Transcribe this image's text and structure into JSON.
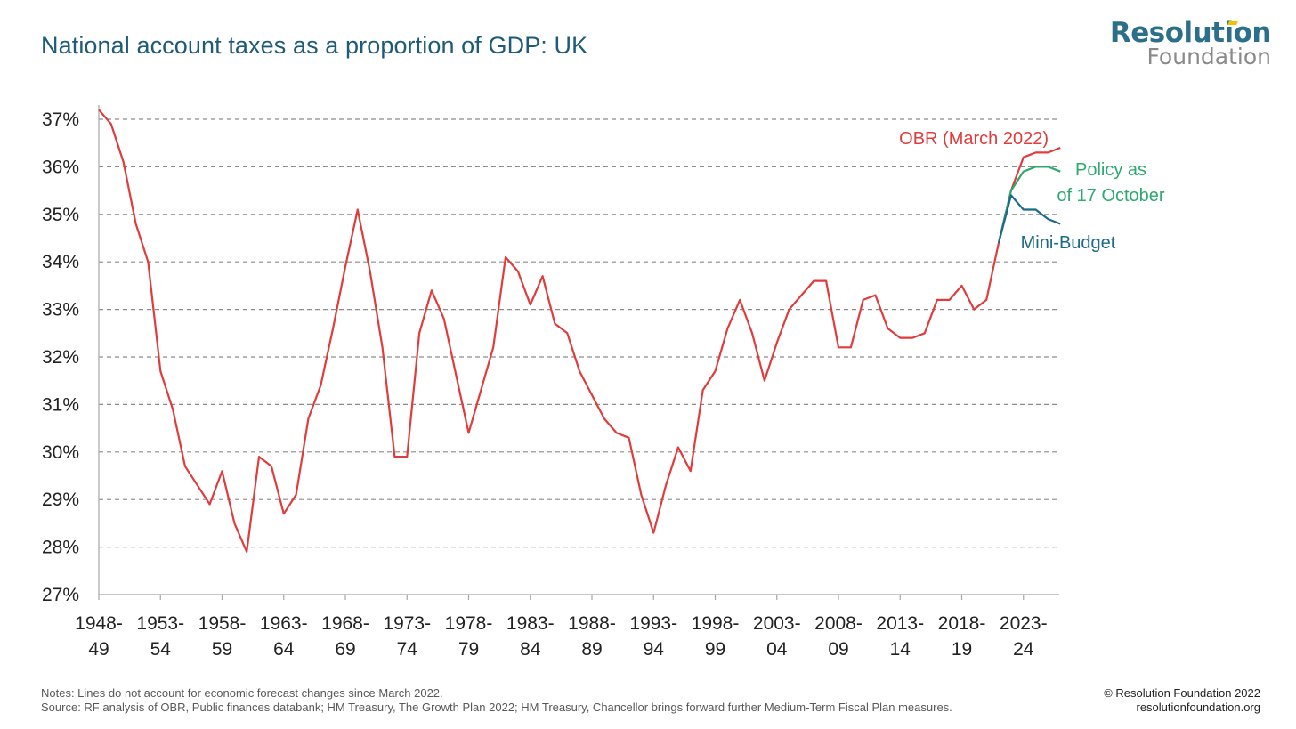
{
  "title": "National account taxes as a proportion of GDP: UK",
  "logo": {
    "line1": "Resolution",
    "line2": "Foundation"
  },
  "notes": "Notes: Lines do not account for economic forecast changes since March 2022.",
  "source": "Source: RF analysis of OBR, Public finances databank; HM Treasury, The Growth Plan 2022; HM Treasury, Chancellor brings forward further Medium-Term Fiscal Plan measures.",
  "copyright": "© Resolution Foundation 2022",
  "website": "resolutionfoundation.org",
  "chart_data": {
    "type": "line",
    "title": "National account taxes as a proportion of GDP: UK",
    "ylim": [
      27,
      37
    ],
    "yticks": [
      "27%",
      "28%",
      "29%",
      "30%",
      "31%",
      "32%",
      "33%",
      "34%",
      "35%",
      "36%",
      "37%"
    ],
    "grid": "horizontal dashed",
    "xtick_labels": [
      [
        "1948-",
        "49"
      ],
      [
        "1953-",
        "54"
      ],
      [
        "1958-",
        "59"
      ],
      [
        "1963-",
        "64"
      ],
      [
        "1968-",
        "69"
      ],
      [
        "1973-",
        "74"
      ],
      [
        "1978-",
        "79"
      ],
      [
        "1983-",
        "84"
      ],
      [
        "1988-",
        "89"
      ],
      [
        "1993-",
        "94"
      ],
      [
        "1998-",
        "99"
      ],
      [
        "2003-",
        "04"
      ],
      [
        "2008-",
        "09"
      ],
      [
        "2013-",
        "14"
      ],
      [
        "2018-",
        "19"
      ],
      [
        "2023-",
        "24"
      ]
    ],
    "x_start_year": 1948,
    "series": [
      {
        "name": "OBR (March 2022)",
        "color": "#e03c3c",
        "start_year": 1948,
        "values": [
          37.2,
          36.9,
          36.1,
          34.8,
          34.0,
          31.7,
          30.9,
          29.7,
          29.3,
          28.9,
          29.6,
          28.5,
          27.9,
          29.9,
          29.7,
          28.7,
          29.1,
          30.7,
          31.4,
          32.6,
          33.9,
          35.1,
          33.8,
          32.2,
          29.9,
          29.9,
          32.5,
          33.4,
          32.8,
          31.6,
          30.4,
          31.3,
          32.2,
          34.1,
          33.8,
          33.1,
          33.7,
          32.7,
          32.5,
          31.7,
          31.2,
          30.7,
          30.4,
          30.3,
          29.1,
          28.3,
          29.3,
          30.1,
          29.6,
          31.3,
          31.7,
          32.6,
          33.2,
          32.5,
          31.5,
          32.3,
          33.0,
          33.3,
          33.6,
          33.6,
          32.2,
          32.2,
          33.2,
          33.3,
          32.6,
          32.4,
          32.4,
          32.5,
          33.2,
          33.2,
          33.5,
          33.0,
          33.2,
          34.4,
          35.5,
          36.2,
          36.3,
          36.3,
          36.4
        ]
      },
      {
        "name": "Policy as of 17 October",
        "color": "#2ea96f",
        "start_year": 2021,
        "values": [
          34.4,
          35.5,
          35.9,
          36.0,
          36.0,
          35.9
        ]
      },
      {
        "name": "Mini-Budget",
        "color": "#1a6a8a",
        "start_year": 2021,
        "values": [
          34.4,
          35.4,
          35.1,
          35.1,
          34.9,
          34.8
        ]
      }
    ],
    "annotations": [
      {
        "text": "OBR (March 2022)",
        "color": "#e03c3c"
      },
      {
        "text": "Policy as",
        "color": "#2ea96f"
      },
      {
        "text": "of 17 October",
        "color": "#2ea96f"
      },
      {
        "text": "Mini-Budget",
        "color": "#1a6a8a"
      }
    ]
  }
}
